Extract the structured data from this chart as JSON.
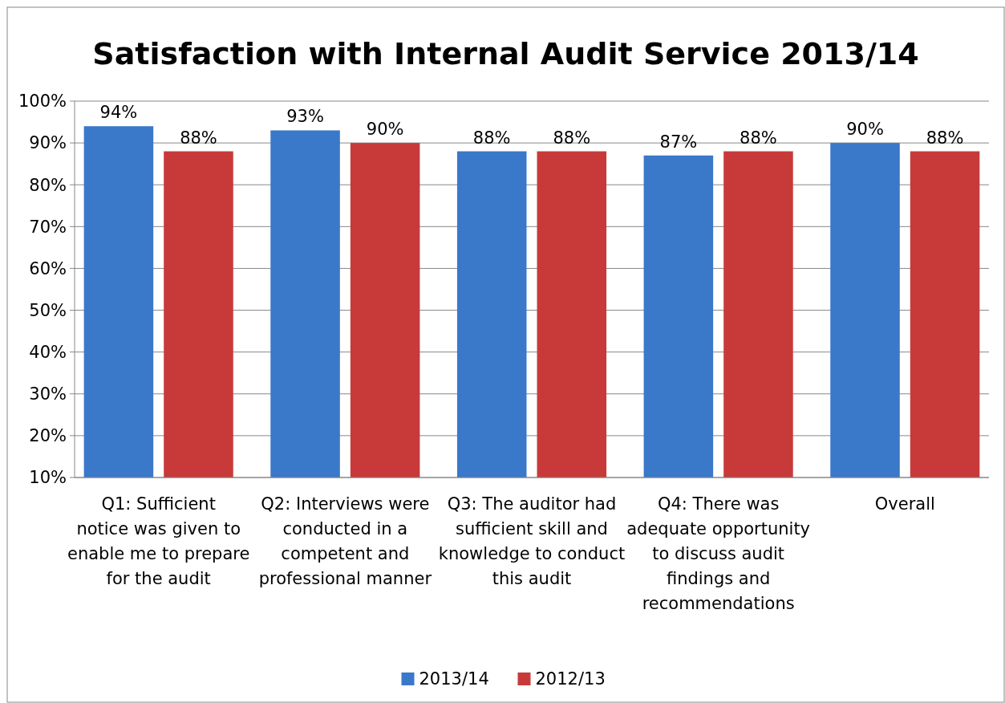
{
  "chart_data": {
    "type": "bar",
    "title": "Satisfaction with Internal Audit Service 2013/14",
    "categories": [
      "Q1: Sufficient notice was given to enable me to prepare for the audit",
      "Q2: Interviews were conducted in a competent and professional manner",
      "Q3: The auditor had sufficient skill and knowledge to conduct this audit",
      "Q4: There was adequate opportunity to discuss audit findings and recommendations",
      "Overall"
    ],
    "series": [
      {
        "name": "2013/14",
        "color": "#3a78c9",
        "values": [
          94,
          93,
          88,
          87,
          90
        ],
        "value_labels": [
          "94%",
          "93%",
          "88%",
          "87%",
          "90%"
        ]
      },
      {
        "name": "2012/13",
        "color": "#c83a3a",
        "values": [
          88,
          90,
          88,
          88,
          88
        ],
        "value_labels": [
          "88%",
          "90%",
          "88%",
          "88%",
          "88%"
        ]
      }
    ],
    "ylim": [
      10,
      100
    ],
    "yticks": [
      {
        "value": 10,
        "label": "10%"
      },
      {
        "value": 20,
        "label": "20%"
      },
      {
        "value": 30,
        "label": "30%"
      },
      {
        "value": 40,
        "label": "40%"
      },
      {
        "value": 50,
        "label": "50%"
      },
      {
        "value": 60,
        "label": "60%"
      },
      {
        "value": 70,
        "label": "70%"
      },
      {
        "value": 80,
        "label": "80%"
      },
      {
        "value": 90,
        "label": "90%"
      },
      {
        "value": 100,
        "label": "100%"
      }
    ],
    "grid": "y",
    "legend": "bottom"
  }
}
